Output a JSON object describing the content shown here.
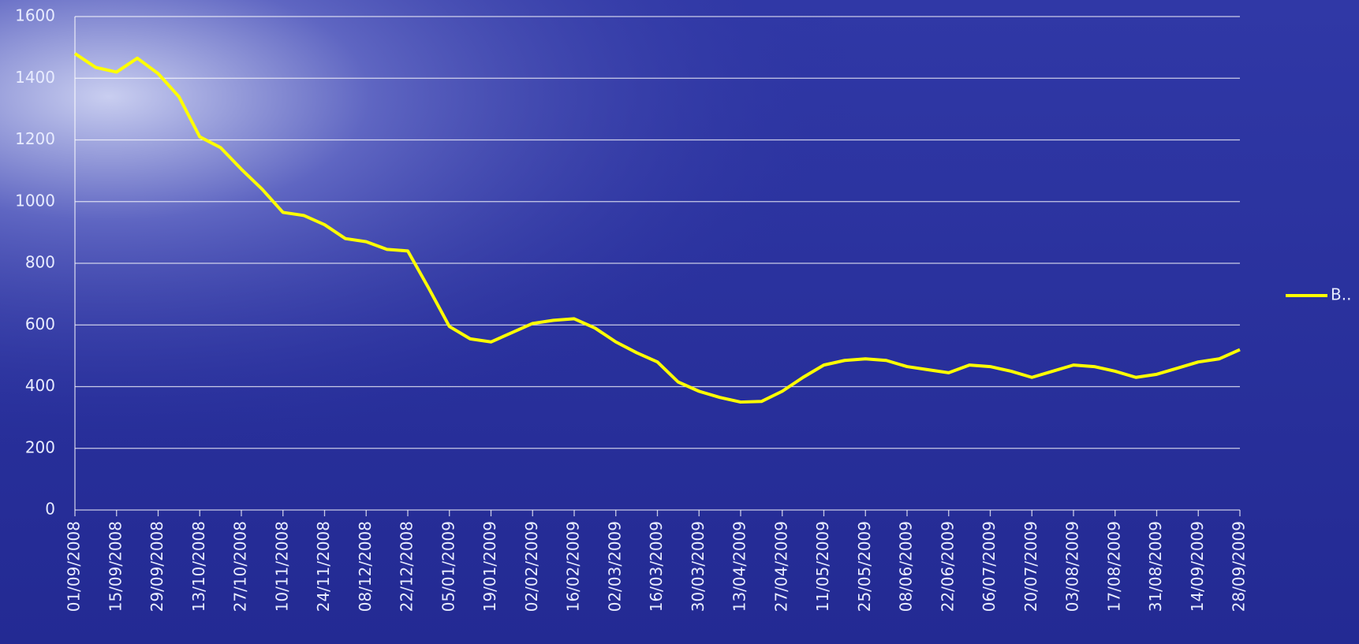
{
  "chart_data": {
    "type": "line",
    "categories": [
      "01/09/2008",
      null,
      "15/09/2008",
      null,
      "29/09/2008",
      null,
      "13/10/2008",
      null,
      "27/10/2008",
      null,
      "10/11/2008",
      null,
      "24/11/2008",
      null,
      "08/12/2008",
      null,
      "22/12/2008",
      null,
      "05/01/2009",
      null,
      "19/01/2009",
      null,
      "02/02/2009",
      null,
      "16/02/2009",
      null,
      "02/03/2009",
      null,
      "16/03/2009",
      null,
      "30/03/2009",
      null,
      "13/04/2009",
      null,
      "27/04/2009",
      null,
      "11/05/2009",
      null,
      "25/05/2009",
      null,
      "08/06/2009",
      null,
      "22/06/2009",
      null,
      "06/07/2009",
      null,
      "20/07/2009",
      null,
      "03/08/2009",
      null,
      "17/08/2009",
      null,
      "31/08/2009",
      null,
      "14/09/2009",
      null,
      "28/09/2009"
    ],
    "series": [
      {
        "name": "B..",
        "color": "#ffff00",
        "values": [
          1480,
          1435,
          1420,
          1465,
          1415,
          1340,
          1210,
          1175,
          1105,
          1040,
          965,
          955,
          925,
          880,
          870,
          845,
          840,
          720,
          595,
          555,
          545,
          575,
          605,
          615,
          620,
          590,
          545,
          510,
          480,
          415,
          385,
          365,
          350,
          352,
          385,
          430,
          470,
          485,
          490,
          485,
          465,
          455,
          445,
          470,
          465,
          450,
          430,
          450,
          470,
          465,
          450,
          430,
          440,
          460,
          480,
          490,
          520
        ]
      }
    ],
    "ylim": [
      0,
      1600
    ],
    "yticks": [
      0,
      200,
      400,
      600,
      800,
      1000,
      1200,
      1400,
      1600
    ],
    "grid": true,
    "legend": "right"
  }
}
